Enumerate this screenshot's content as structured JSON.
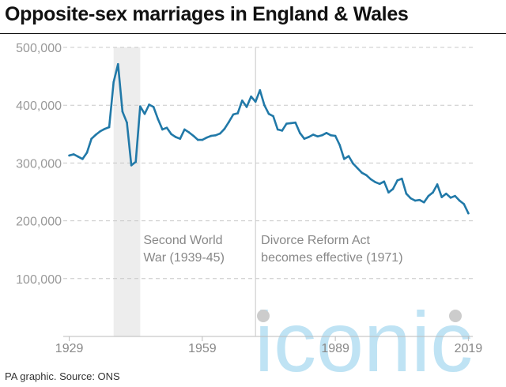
{
  "title": "Opposite-sex marriages in England & Wales",
  "source": "PA graphic. Source: ONS",
  "watermark": "iconic",
  "colors": {
    "line": "#2179a8",
    "grid": "#c8c8c8",
    "band": "#ededed",
    "marker": "#cccccc"
  },
  "chart_data": {
    "type": "line",
    "title": "Opposite-sex marriages in England & Wales",
    "xlabel": "",
    "ylabel": "",
    "xlim": [
      1928,
      2020
    ],
    "ylim": [
      0,
      500000
    ],
    "grid": true,
    "legend": "none",
    "y_ticks": [
      100000,
      200000,
      300000,
      400000,
      500000
    ],
    "y_tick_labels": [
      "100,000",
      "200,000",
      "300,000",
      "400,000",
      "500,000"
    ],
    "x_ticks": [
      1929,
      1959,
      1989,
      2019
    ],
    "x_tick_labels": [
      "1929",
      "1959",
      "1989",
      "2019"
    ],
    "annotations": [
      {
        "type": "band",
        "x_start": 1939,
        "x_end": 1945,
        "lines": [
          "Second World",
          "War (1939-45)"
        ]
      },
      {
        "type": "vline",
        "x": 1971,
        "lines": [
          "Divorce Reform Act",
          "becomes effective (1971)"
        ]
      }
    ],
    "series": [
      {
        "x": [
          1929,
          1930,
          1931,
          1932,
          1933,
          1934,
          1935,
          1936,
          1937,
          1938,
          1939,
          1940,
          1941,
          1942,
          1943,
          1944,
          1945,
          1946,
          1947,
          1948,
          1949,
          1950,
          1951,
          1952,
          1953,
          1954,
          1955,
          1956,
          1957,
          1958,
          1959,
          1960,
          1961,
          1962,
          1963,
          1964,
          1965,
          1966,
          1967,
          1968,
          1969,
          1970,
          1971,
          1972,
          1973,
          1974,
          1975,
          1976,
          1977,
          1978,
          1979,
          1980,
          1981,
          1982,
          1983,
          1984,
          1985,
          1986,
          1987,
          1988,
          1989,
          1990,
          1991,
          1992,
          1993,
          1994,
          1995,
          1996,
          1997,
          1998,
          1999,
          2000,
          2001,
          2002,
          2003,
          2004,
          2005,
          2006,
          2007,
          2008,
          2009,
          2010,
          2011,
          2012,
          2013,
          2014,
          2015,
          2016,
          2017,
          2018,
          2019
        ],
        "values": [
          313000,
          315000,
          311000,
          307000,
          318000,
          342000,
          349000,
          355000,
          359000,
          362000,
          440000,
          471000,
          389000,
          370000,
          296000,
          302000,
          398000,
          385000,
          401000,
          397000,
          376000,
          358000,
          361000,
          350000,
          345000,
          342000,
          358000,
          353000,
          347000,
          340000,
          340000,
          344000,
          347000,
          348000,
          351000,
          359000,
          371000,
          384000,
          386000,
          408000,
          397000,
          415000,
          406000,
          426000,
          400000,
          385000,
          381000,
          358000,
          356000,
          368000,
          369000,
          370000,
          352000,
          342000,
          345000,
          349000,
          346000,
          348000,
          352000,
          348000,
          347000,
          331000,
          307000,
          312000,
          299000,
          291000,
          283000,
          279000,
          272000,
          267000,
          264000,
          268000,
          249000,
          255000,
          270000,
          273000,
          247000,
          239000,
          235000,
          236000,
          232000,
          243000,
          249000,
          263000,
          241000,
          247000,
          240000,
          243000,
          235000,
          229000,
          213000
        ]
      }
    ]
  }
}
